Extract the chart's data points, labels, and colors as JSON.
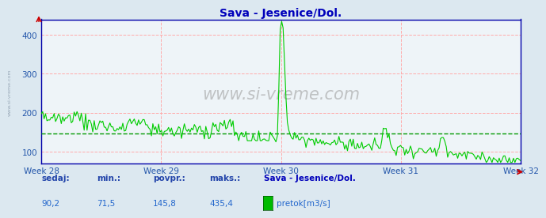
{
  "title": "Sava - Jesenice/Dol.",
  "bg_color": "#dce8f0",
  "plot_bg_color": "#eef4f8",
  "line_color": "#00cc00",
  "avg_line_color": "#009900",
  "grid_color_major": "#ffaaaa",
  "title_color": "#0000bb",
  "xlabel_color": "#2255aa",
  "value_color": "#2266cc",
  "label_color": "#2244aa",
  "ylim": [
    70,
    440
  ],
  "yticks": [
    100,
    200,
    300,
    400
  ],
  "week_labels": [
    "Week 28",
    "Week 29",
    "Week 30",
    "Week 31",
    "Week 32"
  ],
  "avg_value": 145.8,
  "sedaj": 90.2,
  "min_val": 71.5,
  "povpr": 145.8,
  "maks": 435.4,
  "footer_station": "Sava - Jesenice/Dol.",
  "footer_series": "pretok[m3/s]",
  "legend_color": "#00bb00",
  "n_points": 336,
  "watermark": "www.si-vreme.com"
}
